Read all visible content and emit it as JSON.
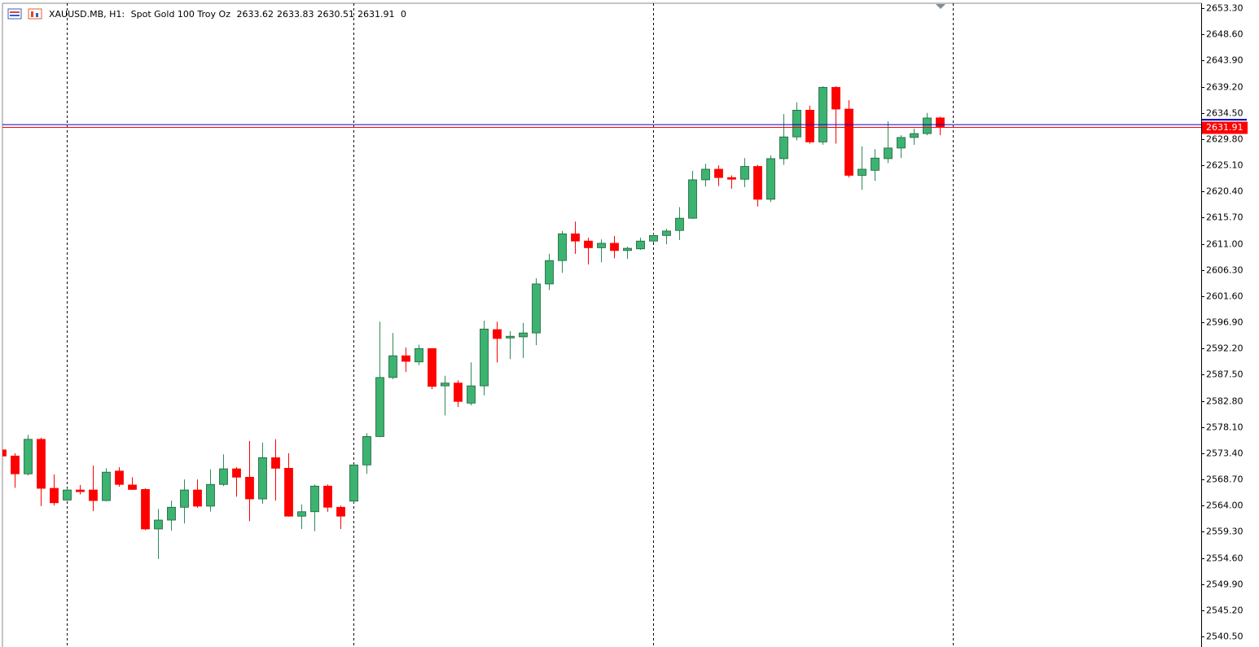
{
  "header": {
    "symbol": "XAUUSD.MB, H1:",
    "description": "Spot Gold 100 Troy Oz",
    "spread": 0
  },
  "chart_data": {
    "type": "candlestick",
    "up_color": "#3cb371",
    "down_color": "#ff0000",
    "ask_color": "#0000cc",
    "ask": 2632.4,
    "ylim": [
      2538.9,
      2654.2
    ],
    "yticks": [
      {
        "value": 2653.3,
        "label": "2653.30"
      },
      {
        "value": 2648.6,
        "label": "2648.60"
      },
      {
        "value": 2643.9,
        "label": "2643.90"
      },
      {
        "value": 2639.2,
        "label": "2639.20"
      },
      {
        "value": 2634.5,
        "label": "2634.50"
      },
      {
        "value": 2629.8,
        "label": "2629.80"
      },
      {
        "value": 2625.1,
        "label": "2625.10"
      },
      {
        "value": 2620.4,
        "label": "2620.40"
      },
      {
        "value": 2615.7,
        "label": "2615.70"
      },
      {
        "value": 2611.0,
        "label": "2611.00"
      },
      {
        "value": 2606.3,
        "label": "2606.30"
      },
      {
        "value": 2601.6,
        "label": "2601.60"
      },
      {
        "value": 2596.9,
        "label": "2596.90"
      },
      {
        "value": 2592.2,
        "label": "2592.20"
      },
      {
        "value": 2587.5,
        "label": "2587.50"
      },
      {
        "value": 2582.8,
        "label": "2582.80"
      },
      {
        "value": 2578.1,
        "label": "2578.10"
      },
      {
        "value": 2573.4,
        "label": "2573.40"
      },
      {
        "value": 2568.7,
        "label": "2568.70"
      },
      {
        "value": 2564.0,
        "label": "2564.00"
      },
      {
        "value": 2559.3,
        "label": "2559.30"
      },
      {
        "value": 2554.6,
        "label": "2554.60"
      },
      {
        "value": 2549.9,
        "label": "2549.90"
      },
      {
        "value": 2545.2,
        "label": "2545.20"
      },
      {
        "value": 2540.5,
        "label": "2540.50"
      }
    ],
    "open": [
      2574.0,
      2572.9,
      2569.7,
      2575.9,
      2567.1,
      2565.0,
      2566.8,
      2566.8,
      2564.9,
      2570.2,
      2567.7,
      2566.9,
      2559.8,
      2561.4,
      2563.7,
      2566.8,
      2563.9,
      2567.8,
      2570.6,
      2569.1,
      2565.2,
      2572.6,
      2570.7,
      2562.1,
      2562.9,
      2567.5,
      2563.7,
      2564.8,
      2571.3,
      2576.4,
      2587.0,
      2590.9,
      2589.8,
      2592.2,
      2585.5,
      2586.0,
      2582.4,
      2585.5,
      2595.6,
      2594.1,
      2594.3,
      2595.0,
      2603.8,
      2608.0,
      2612.8,
      2611.5,
      2610.3,
      2611.1,
      2609.8,
      2610.1,
      2611.5,
      2612.5,
      2613.4,
      2615.6,
      2622.5,
      2624.4,
      2622.9,
      2622.6,
      2624.9,
      2619.0,
      2626.3,
      2630.2,
      2635.0,
      2629.3,
      2639.1,
      2635.2,
      2623.3,
      2624.2,
      2626.3,
      2628.2,
      2630.1,
      2630.8,
      2633.62
    ],
    "high": [
      2574.0,
      2573.4,
      2576.7,
      2576.2,
      2569.6,
      2567.1,
      2567.7,
      2571.2,
      2570.7,
      2570.9,
      2569.1,
      2567.1,
      2563.4,
      2564.9,
      2568.7,
      2568.7,
      2570.5,
      2573.2,
      2570.9,
      2575.6,
      2575.3,
      2575.9,
      2573.4,
      2564.2,
      2567.8,
      2567.8,
      2564.0,
      2571.5,
      2577.0,
      2597.0,
      2595.0,
      2592.4,
      2592.9,
      2592.2,
      2587.3,
      2586.5,
      2589.7,
      2597.2,
      2597.0,
      2595.3,
      2596.8,
      2604.8,
      2609.2,
      2613.3,
      2615.0,
      2612.1,
      2611.8,
      2612.4,
      2610.5,
      2612.1,
      2612.8,
      2613.7,
      2617.6,
      2624.1,
      2625.4,
      2625.1,
      2623.3,
      2626.4,
      2625.2,
      2626.9,
      2634.3,
      2636.4,
      2635.8,
      2639.3,
      2639.3,
      2636.8,
      2628.5,
      2628.0,
      2633.0,
      2630.5,
      2631.7,
      2634.5,
      2633.83
    ],
    "low": [
      2572.9,
      2567.2,
      2569.4,
      2563.9,
      2564.0,
      2564.9,
      2566.0,
      2563.0,
      2564.8,
      2567.4,
      2566.8,
      2559.6,
      2554.4,
      2559.5,
      2560.8,
      2563.6,
      2562.9,
      2567.5,
      2565.6,
      2561.2,
      2564.3,
      2564.9,
      2562.0,
      2559.8,
      2559.4,
      2562.9,
      2559.8,
      2564.6,
      2569.7,
      2576.3,
      2586.7,
      2588.0,
      2589.2,
      2584.9,
      2580.2,
      2581.7,
      2582.0,
      2583.8,
      2589.7,
      2590.3,
      2590.5,
      2592.8,
      2602.7,
      2605.8,
      2609.2,
      2607.3,
      2607.7,
      2608.4,
      2608.3,
      2609.9,
      2611.2,
      2610.9,
      2611.7,
      2615.5,
      2621.3,
      2621.4,
      2620.9,
      2621.2,
      2617.7,
      2618.5,
      2625.2,
      2629.6,
      2629.0,
      2628.8,
      2629.0,
      2622.9,
      2620.7,
      2622.3,
      2625.5,
      2626.4,
      2628.8,
      2630.5,
      2630.51
    ],
    "close": [
      2572.9,
      2569.7,
      2575.9,
      2567.1,
      2564.5,
      2566.8,
      2566.5,
      2564.9,
      2570.0,
      2567.8,
      2566.9,
      2559.8,
      2561.4,
      2563.7,
      2566.8,
      2563.9,
      2567.8,
      2570.6,
      2569.1,
      2565.2,
      2572.6,
      2570.7,
      2562.1,
      2562.9,
      2567.5,
      2563.7,
      2562.1,
      2571.3,
      2576.4,
      2587.0,
      2590.9,
      2589.9,
      2592.2,
      2585.4,
      2586.0,
      2582.7,
      2585.5,
      2595.7,
      2594.0,
      2594.4,
      2595.0,
      2603.8,
      2608.0,
      2612.8,
      2611.5,
      2610.3,
      2611.1,
      2609.8,
      2610.2,
      2611.5,
      2612.5,
      2613.3,
      2615.6,
      2622.5,
      2624.4,
      2622.9,
      2622.6,
      2624.9,
      2619.0,
      2626.3,
      2630.2,
      2635.0,
      2629.3,
      2639.1,
      2635.2,
      2623.3,
      2624.4,
      2626.4,
      2628.2,
      2630.1,
      2630.8,
      2633.6,
      2631.91
    ]
  }
}
